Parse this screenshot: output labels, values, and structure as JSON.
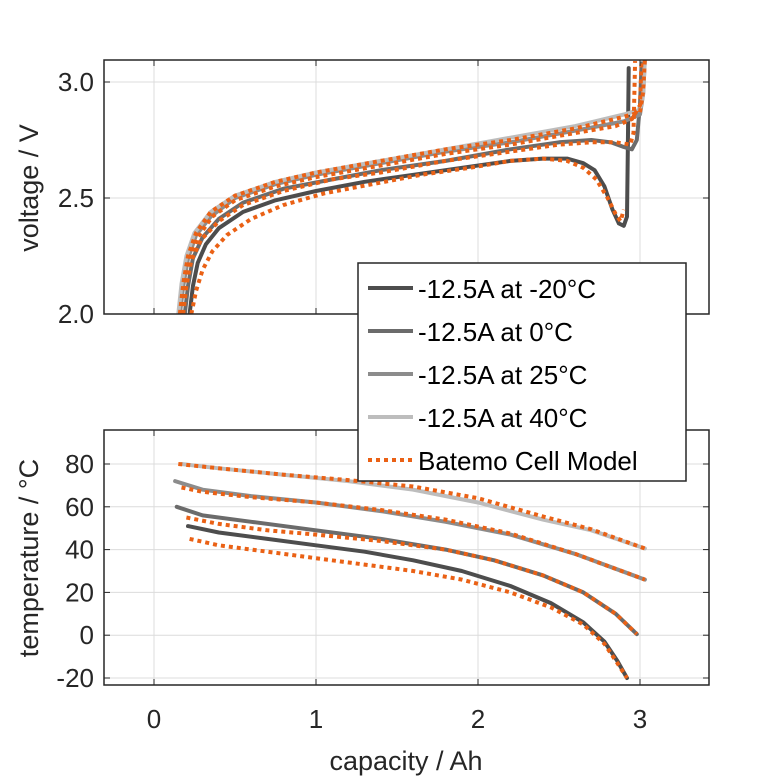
{
  "chart_data": [
    {
      "type": "line",
      "panel": "top",
      "title": "",
      "xlabel": "",
      "ylabel": "voltage / V",
      "xlim": [
        -0.3,
        3.45
      ],
      "ylim": [
        2.0,
        3.1
      ],
      "xticks": [
        0,
        1,
        2,
        3
      ],
      "yticks": [
        2.0,
        2.5,
        3.0
      ],
      "ytick_labels": [
        "2.0",
        "2.5",
        "3.0"
      ],
      "grid": true,
      "series": [
        {
          "name": "-12.5A at -20°C",
          "color": "#4d4d4d",
          "style": "solid",
          "x": [
            0.22,
            0.24,
            0.27,
            0.32,
            0.4,
            0.55,
            0.75,
            1.0,
            1.3,
            1.6,
            1.9,
            2.2,
            2.4,
            2.55,
            2.65,
            2.72,
            2.78,
            2.83,
            2.87,
            2.9,
            2.92,
            2.925,
            2.93
          ],
          "y": [
            2.0,
            2.12,
            2.22,
            2.3,
            2.37,
            2.44,
            2.49,
            2.53,
            2.57,
            2.6,
            2.63,
            2.66,
            2.67,
            2.67,
            2.65,
            2.62,
            2.55,
            2.45,
            2.39,
            2.38,
            2.42,
            2.7,
            3.06
          ]
        },
        {
          "name": "-12.5A at 0°C",
          "color": "#6b6b6b",
          "style": "solid",
          "x": [
            0.19,
            0.21,
            0.24,
            0.3,
            0.4,
            0.55,
            0.8,
            1.1,
            1.4,
            1.8,
            2.2,
            2.5,
            2.7,
            2.82,
            2.9,
            2.95,
            2.98,
            3.0,
            3.01
          ],
          "y": [
            2.0,
            2.12,
            2.24,
            2.33,
            2.41,
            2.48,
            2.54,
            2.58,
            2.62,
            2.66,
            2.71,
            2.74,
            2.75,
            2.74,
            2.72,
            2.71,
            2.75,
            2.9,
            3.08
          ]
        },
        {
          "name": "-12.5A at 25°C",
          "color": "#8c8c8c",
          "style": "solid",
          "x": [
            0.16,
            0.18,
            0.21,
            0.26,
            0.35,
            0.5,
            0.75,
            1.0,
            1.4,
            1.8,
            2.2,
            2.6,
            2.9,
            3.0,
            3.02,
            3.03
          ],
          "y": [
            2.0,
            2.12,
            2.24,
            2.34,
            2.42,
            2.5,
            2.56,
            2.6,
            2.65,
            2.7,
            2.74,
            2.79,
            2.83,
            2.86,
            2.95,
            3.1
          ]
        },
        {
          "name": "-12.5A at 40°C",
          "color": "#bdbdbd",
          "style": "solid",
          "x": [
            0.15,
            0.17,
            0.2,
            0.25,
            0.35,
            0.5,
            0.75,
            1.0,
            1.4,
            1.8,
            2.2,
            2.6,
            2.9,
            3.0,
            3.02,
            3.03
          ],
          "y": [
            2.0,
            2.13,
            2.25,
            2.35,
            2.44,
            2.51,
            2.57,
            2.61,
            2.66,
            2.71,
            2.76,
            2.81,
            2.86,
            2.88,
            2.95,
            3.1
          ]
        },
        {
          "name": "Batemo Cell Model",
          "color": "#ea6115",
          "style": "dotted",
          "x": [
            0.23,
            0.26,
            0.3,
            0.36,
            0.45,
            0.6,
            0.8,
            1.05,
            1.35,
            1.65,
            1.95,
            2.2,
            2.4,
            2.55,
            2.65,
            2.73,
            2.8,
            2.85,
            2.88,
            2.9
          ],
          "y": [
            2.0,
            2.1,
            2.19,
            2.27,
            2.34,
            2.41,
            2.47,
            2.52,
            2.56,
            2.6,
            2.63,
            2.66,
            2.67,
            2.66,
            2.63,
            2.58,
            2.5,
            2.43,
            2.4,
            2.45
          ]
        },
        {
          "name": "Batemo Cell Model",
          "color": "#ea6115",
          "style": "dotted",
          "legend": false,
          "x": [
            0.18,
            0.2,
            0.23,
            0.29,
            0.4,
            0.55,
            0.8,
            1.1,
            1.4,
            1.8,
            2.2,
            2.5,
            2.7,
            2.85,
            2.94,
            2.96,
            2.97
          ],
          "y": [
            2.0,
            2.12,
            2.23,
            2.32,
            2.4,
            2.47,
            2.53,
            2.58,
            2.61,
            2.66,
            2.7,
            2.73,
            2.74,
            2.74,
            2.73,
            2.78,
            3.09
          ]
        },
        {
          "name": "Batemo Cell Model",
          "color": "#ea6115",
          "style": "dotted",
          "legend": false,
          "x": [
            0.17,
            0.19,
            0.22,
            0.27,
            0.36,
            0.5,
            0.75,
            1.0,
            1.4,
            1.8,
            2.2,
            2.6,
            2.85,
            2.95,
            3.0,
            3.01
          ],
          "y": [
            2.0,
            2.13,
            2.24,
            2.33,
            2.42,
            2.49,
            2.55,
            2.59,
            2.64,
            2.69,
            2.73,
            2.78,
            2.81,
            2.84,
            2.9,
            3.1
          ]
        },
        {
          "name": "Batemo Cell Model",
          "color": "#ea6115",
          "style": "dotted",
          "legend": false,
          "x": [
            0.16,
            0.18,
            0.21,
            0.26,
            0.35,
            0.5,
            0.75,
            1.0,
            1.4,
            1.8,
            2.2,
            2.6,
            2.9,
            3.0,
            3.02,
            3.03
          ],
          "y": [
            2.0,
            2.13,
            2.25,
            2.35,
            2.44,
            2.51,
            2.57,
            2.61,
            2.66,
            2.71,
            2.75,
            2.8,
            2.85,
            2.87,
            2.96,
            3.1
          ]
        }
      ],
      "legend": {
        "placement": "bottom-right, overlapping lower panel",
        "entries": [
          {
            "label": "-12.5A at -20°C",
            "color": "#4d4d4d",
            "style": "solid"
          },
          {
            "label": "-12.5A at 0°C",
            "color": "#6b6b6b",
            "style": "solid"
          },
          {
            "label": "-12.5A at 25°C",
            "color": "#8c8c8c",
            "style": "solid"
          },
          {
            "label": "-12.5A at 40°C",
            "color": "#bdbdbd",
            "style": "solid"
          },
          {
            "label": "Batemo Cell Model",
            "color": "#ea6115",
            "style": "dotted"
          }
        ]
      }
    },
    {
      "type": "line",
      "panel": "bottom",
      "title": "",
      "xlabel": "capacity / Ah",
      "ylabel": "temperature / °C",
      "xlim": [
        -0.3,
        3.45
      ],
      "ylim": [
        -22,
        95
      ],
      "xticks": [
        0,
        1,
        2,
        3
      ],
      "xtick_labels": [
        "0",
        "1",
        "2",
        "3"
      ],
      "yticks": [
        -20,
        0,
        20,
        40,
        60,
        80
      ],
      "ytick_labels": [
        "-20",
        "0",
        "20",
        "40",
        "60",
        "80"
      ],
      "grid": true,
      "series": [
        {
          "name": "-12.5A at -20°C",
          "color": "#4d4d4d",
          "style": "solid",
          "x": [
            0.21,
            0.4,
            0.7,
            1.0,
            1.3,
            1.6,
            1.9,
            2.2,
            2.45,
            2.65,
            2.78,
            2.86,
            2.92
          ],
          "y": [
            51,
            48,
            45,
            42,
            39,
            35,
            30,
            23,
            15,
            6,
            -3,
            -12,
            -20
          ]
        },
        {
          "name": "-12.5A at 0°C",
          "color": "#6b6b6b",
          "style": "solid",
          "x": [
            0.14,
            0.3,
            0.6,
            1.0,
            1.4,
            1.8,
            2.1,
            2.4,
            2.65,
            2.85,
            2.98
          ],
          "y": [
            60,
            56,
            53,
            49,
            45,
            40,
            35,
            28,
            20,
            10,
            0.5
          ]
        },
        {
          "name": "-12.5A at 25°C",
          "color": "#8c8c8c",
          "style": "solid",
          "x": [
            0.13,
            0.3,
            0.6,
            1.0,
            1.4,
            1.8,
            2.2,
            2.6,
            3.03
          ],
          "y": [
            72,
            68,
            65,
            62,
            58,
            53,
            47,
            38,
            26
          ]
        },
        {
          "name": "-12.5A at 40°C",
          "color": "#bdbdbd",
          "style": "solid",
          "x": [
            0.17,
            0.4,
            0.8,
            1.2,
            1.6,
            2.0,
            2.4,
            2.7,
            3.03
          ],
          "y": [
            80,
            78,
            75,
            72,
            68,
            62,
            54,
            49,
            40.5
          ]
        },
        {
          "name": "Batemo Cell Model",
          "color": "#ea6115",
          "style": "dotted",
          "legend": false,
          "x": [
            0.22,
            0.4,
            0.7,
            1.0,
            1.3,
            1.6,
            1.9,
            2.2,
            2.45,
            2.65,
            2.78,
            2.86,
            2.92
          ],
          "y": [
            45,
            42,
            39,
            36,
            33,
            30,
            26,
            20,
            13,
            5,
            -4,
            -13,
            -20
          ]
        },
        {
          "name": "Batemo Cell Model",
          "color": "#ea6115",
          "style": "dotted",
          "legend": false,
          "x": [
            0.2,
            0.4,
            0.7,
            1.0,
            1.4,
            1.8,
            2.1,
            2.4,
            2.65,
            2.85,
            2.98
          ],
          "y": [
            55,
            52,
            49,
            47,
            44,
            40,
            35,
            28,
            20,
            10,
            0.5
          ]
        },
        {
          "name": "Batemo Cell Model",
          "color": "#ea6115",
          "style": "dotted",
          "legend": false,
          "x": [
            0.17,
            0.3,
            0.6,
            1.0,
            1.4,
            1.8,
            2.2,
            2.6,
            3.03
          ],
          "y": [
            69,
            67,
            64.5,
            62,
            58.5,
            54,
            47.5,
            38,
            26
          ]
        },
        {
          "name": "Batemo Cell Model",
          "color": "#ea6115",
          "style": "dotted",
          "legend": false,
          "x": [
            0.15,
            0.4,
            0.8,
            1.2,
            1.6,
            2.0,
            2.4,
            2.7,
            3.03
          ],
          "y": [
            80,
            78,
            75,
            72.5,
            69.5,
            64,
            55.5,
            49.5,
            40.5
          ]
        }
      ]
    }
  ]
}
